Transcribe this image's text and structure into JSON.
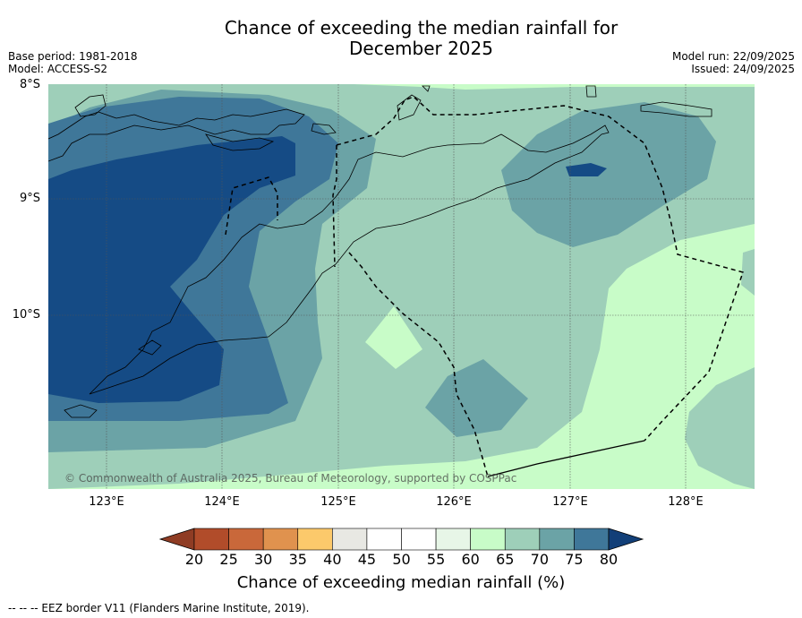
{
  "title": {
    "line1": "Chance of exceeding the median rainfall for",
    "line2": "December 2025"
  },
  "meta": {
    "base_period": "Base period: 1981-2018",
    "model": "Model: ACCESS-S2",
    "model_run": "Model run: 22/09/2025",
    "issued": "Issued: 24/09/2025"
  },
  "axes": {
    "lat_labels": [
      "8°S",
      "9°S",
      "10°S"
    ],
    "lon_labels": [
      "123°E",
      "124°E",
      "125°E",
      "126°E",
      "127°E",
      "128°E"
    ]
  },
  "copyright": "© Commonwealth of Australia 2025, Bureau of Meteorology, supported by COSPPac",
  "colorbar": {
    "ticks": [
      "20",
      "25",
      "30",
      "35",
      "40",
      "45",
      "50",
      "55",
      "60",
      "65",
      "70",
      "75",
      "80"
    ],
    "colors": [
      "#b14c2a",
      "#c9683a",
      "#e0924e",
      "#fcc96b",
      "#e8e8e3",
      "#ffffff",
      "#ffffff",
      "#e7f6e7",
      "#c8fcc8",
      "#9ecfb9",
      "#6ba3a6",
      "#3f7799",
      "#154b85"
    ],
    "under_color": "#8f3c24",
    "over_color": "#123f78",
    "label": "Chance of exceeding median rainfall (%)"
  },
  "footer": "--  --  -- EEZ border V11 (Flanders Marine Institute, 2019)."
}
